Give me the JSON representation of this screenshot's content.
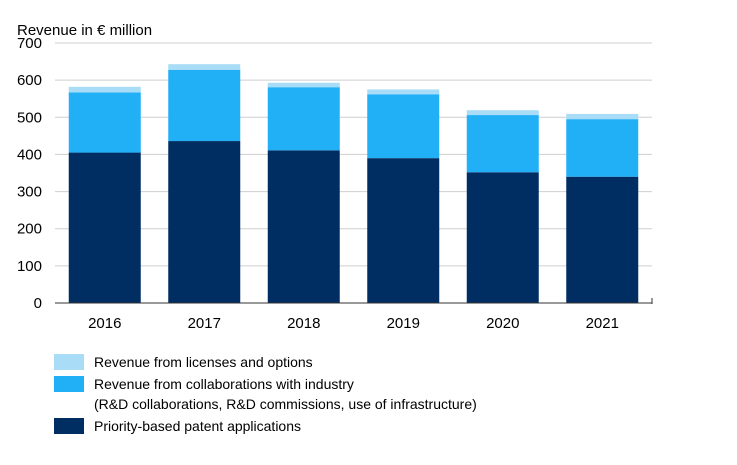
{
  "chart_data": {
    "type": "bar",
    "stacked": true,
    "title": "",
    "ylabel": "Revenue in € million",
    "xlabel": "",
    "categories": [
      "2016",
      "2017",
      "2018",
      "2019",
      "2020",
      "2021"
    ],
    "ylim": [
      0,
      700
    ],
    "yticks": [
      "0",
      "100",
      "200",
      "300",
      "400",
      "500",
      "600",
      "700"
    ],
    "grid": true,
    "legend_position": "bottom",
    "series": [
      {
        "name": "Priority-based patent applications",
        "color": "#002D62",
        "values": [
          405,
          436,
          411,
          390,
          352,
          340
        ]
      },
      {
        "name": "Revenue from collaborations with industry (R&D collaborations, R&D commissions, use of infrastructure)",
        "color": "#21AFF5",
        "values": [
          162,
          192,
          170,
          172,
          154,
          155
        ]
      },
      {
        "name": "Revenue from licenses and options",
        "color": "#A9DCF7",
        "values": [
          15,
          15,
          12,
          13,
          13,
          14
        ]
      }
    ]
  },
  "legend": {
    "items": [
      {
        "label_lines": [
          "Revenue from licenses and options"
        ],
        "color": "#A9DCF7"
      },
      {
        "label_lines": [
          "Revenue from collaborations with industry",
          "(R&D collaborations, R&D commissions, use of infrastructure)"
        ],
        "color": "#21AFF5"
      },
      {
        "label_lines": [
          "Priority-based patent applications"
        ],
        "color": "#002D62"
      }
    ]
  }
}
